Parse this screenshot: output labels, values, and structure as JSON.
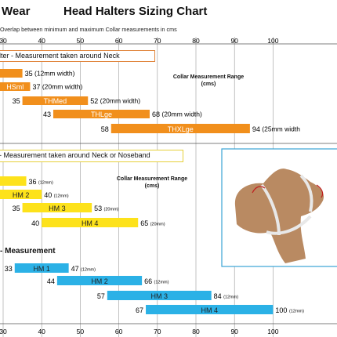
{
  "header": {
    "brand_fragment": "Wear",
    "title": "Head Halters Sizing Chart",
    "subtitle": "Overlap between minimum and maximum Collar measurements in cms"
  },
  "axis_top": {
    "ticks": [
      "30",
      "40",
      "50",
      "60",
      "70",
      "80",
      "90",
      "100"
    ]
  },
  "axis_bottom": {
    "ticks": [
      "30",
      "40",
      "50",
      "60",
      "70",
      "80",
      "90",
      "100"
    ]
  },
  "sections": {
    "halter": {
      "label": "lter - Measurement taken around Neck"
    },
    "neck_or_noseband": {
      "label": "- Measurement taken around Neck or Noseband"
    },
    "measurement": {
      "label": "- Measurement"
    }
  },
  "range_labels": {
    "top": {
      "line1": "Collar Measurement Range",
      "line2": "(cms)"
    },
    "mid": {
      "line1": "Collar Measurement Range",
      "line2": "(cms)"
    }
  },
  "colors": {
    "orange": "#f18f1c",
    "yellow": "#fde21b",
    "blue": "#2bb1e6",
    "grid": "#9a9a9a",
    "section_border_orange": "#e0843a",
    "section_border_yellow": "#e6cf3a",
    "dog_brown": "#b98a62",
    "panel_border": "#3aa4d4"
  },
  "chart_data": [
    {
      "type": "bar",
      "orientation": "horizontal-range",
      "series": [
        {
          "name": "orange",
          "items": [
            {
              "label": "",
              "min": 26,
              "max": 35,
              "max_text": "35",
              "note": "(12mm width)"
            },
            {
              "label": "HSml",
              "min": 26,
              "max": 37,
              "max_text": "37",
              "note": "(20mm width)"
            },
            {
              "label": "THMed",
              "min": 35,
              "max": 52,
              "min_text": "35",
              "max_text": "52",
              "note": "(20mm width)"
            },
            {
              "label": "THLge",
              "min": 43,
              "max": 68,
              "min_text": "43",
              "max_text": "68",
              "note": "(20mm width)"
            },
            {
              "label": "THXLge",
              "min": 58,
              "max": 94,
              "min_text": "58",
              "max_text": "94",
              "note": "(25mm width"
            }
          ]
        },
        {
          "name": "yellow",
          "items": [
            {
              "label": "",
              "min": 26,
              "max": 36,
              "max_text": "36",
              "note": "(12mm)"
            },
            {
              "label": "HM 2",
              "min": 26,
              "max": 40,
              "max_text": "40",
              "note": "(12mm)"
            },
            {
              "label": "HM 3",
              "min": 35,
              "max": 53,
              "min_text": "35",
              "max_text": "53",
              "note": "(20mm)"
            },
            {
              "label": "HM 4",
              "min": 40,
              "max": 65,
              "min_text": "40",
              "max_text": "65",
              "note": "(20mm)"
            }
          ]
        },
        {
          "name": "blue",
          "items": [
            {
              "label": "HM 1",
              "min": 33,
              "max": 47,
              "min_text": "33",
              "max_text": "47",
              "note": "(12mm)"
            },
            {
              "label": "HM 2",
              "min": 44,
              "max": 66,
              "min_text": "44",
              "max_text": "66",
              "note": "(12mm)"
            },
            {
              "label": "HM 3",
              "min": 57,
              "max": 84,
              "min_text": "57",
              "max_text": "84",
              "note": "(12mm)"
            },
            {
              "label": "HM 4",
              "min": 67,
              "max": 100,
              "min_text": "67",
              "max_text": "100",
              "note": "(12mm)"
            }
          ]
        }
      ],
      "xlim": [
        30,
        100
      ],
      "grid": true
    }
  ]
}
